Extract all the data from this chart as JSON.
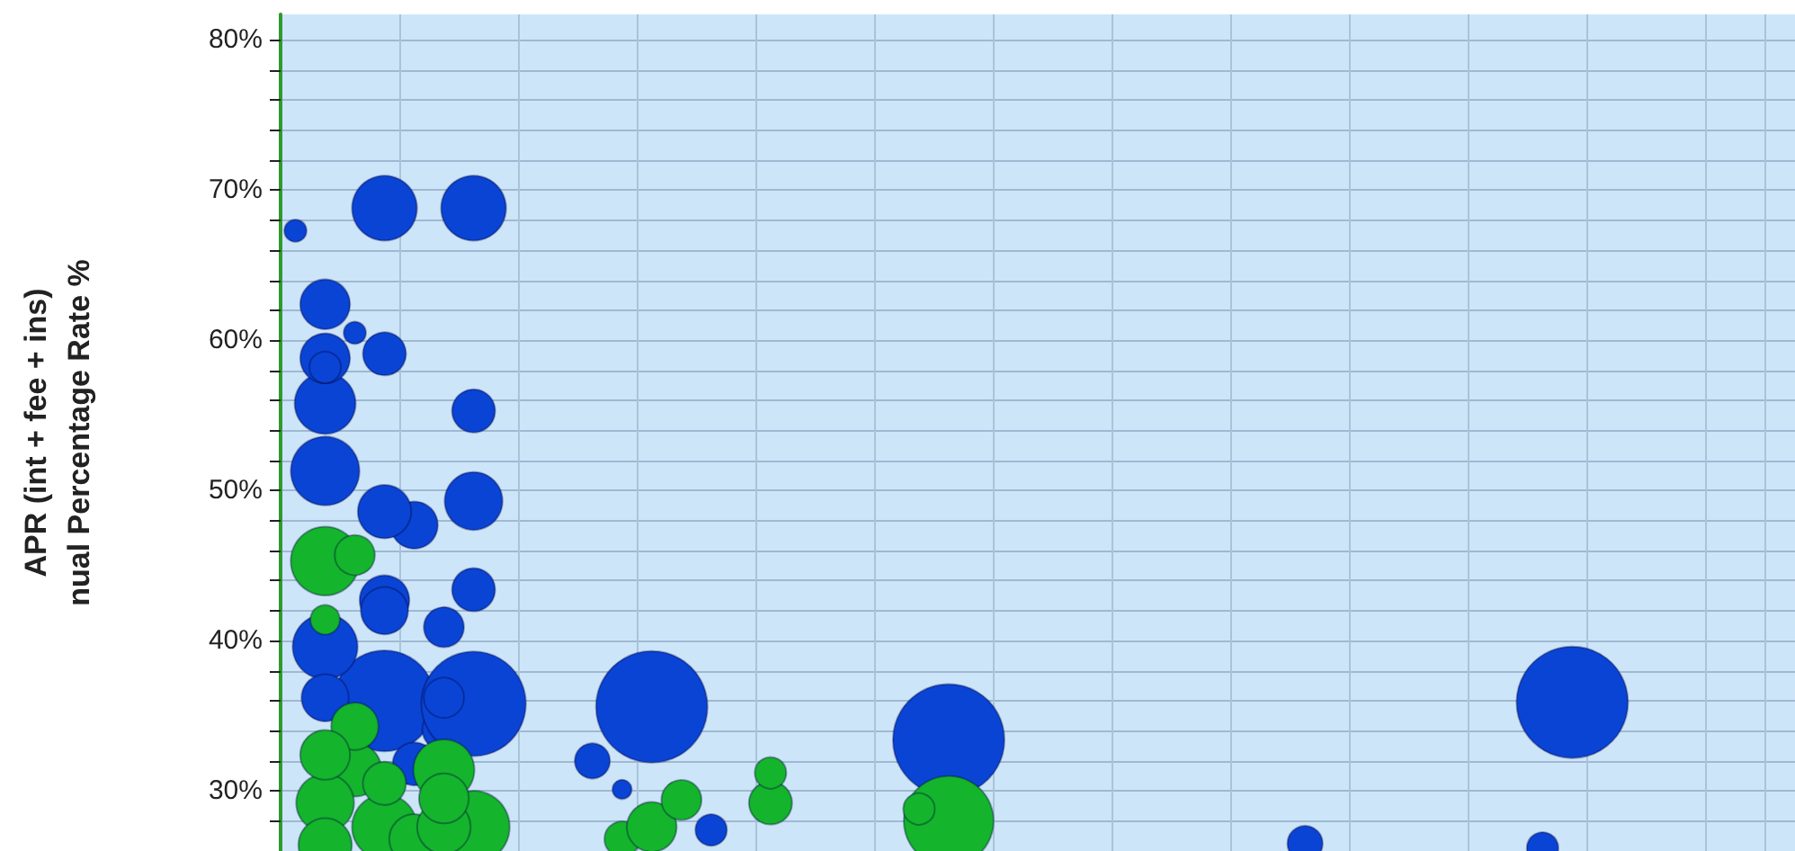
{
  "chart_data": {
    "type": "bubble",
    "ylabel": "APR (int + fee + ins)\nnual Percentage Rate %",
    "categories": [
      null,
      null,
      null,
      null,
      null,
      null,
      null,
      null,
      null,
      null,
      null,
      null,
      null,
      null,
      null,
      null,
      null,
      null,
      null,
      null,
      null,
      null,
      null,
      null,
      null,
      null,
      null,
      null,
      null,
      null,
      null,
      null,
      null,
      null,
      null,
      null,
      null,
      null,
      null,
      null,
      null,
      null,
      null,
      null,
      null,
      null,
      null,
      null,
      null,
      null,
      null
    ],
    "ylim": [
      26,
      81.7
    ],
    "yticks": [
      {
        "value": 28,
        "label": null
      },
      {
        "value": 30,
        "label": "30%"
      },
      {
        "value": 32,
        "label": null
      },
      {
        "value": 34,
        "label": null
      },
      {
        "value": 36,
        "label": null
      },
      {
        "value": 38,
        "label": null
      },
      {
        "value": 40,
        "label": "40%"
      },
      {
        "value": 42,
        "label": null
      },
      {
        "value": 44,
        "label": null
      },
      {
        "value": 46,
        "label": null
      },
      {
        "value": 48,
        "label": null
      },
      {
        "value": 50,
        "label": "50%"
      },
      {
        "value": 52,
        "label": null
      },
      {
        "value": 54,
        "label": null
      },
      {
        "value": 56,
        "label": null
      },
      {
        "value": 58,
        "label": null
      },
      {
        "value": 60,
        "label": "60%"
      },
      {
        "value": 62,
        "label": null
      },
      {
        "value": 64,
        "label": null
      },
      {
        "value": 66,
        "label": null
      },
      {
        "value": 68,
        "label": null
      },
      {
        "value": 70,
        "label": "70%"
      },
      {
        "value": 72,
        "label": null
      },
      {
        "value": 74,
        "label": null
      },
      {
        "value": 76,
        "label": null
      },
      {
        "value": 78,
        "label": null
      },
      {
        "value": 80,
        "label": "80%"
      }
    ],
    "tick_labels": "y",
    "grid": true,
    "series": [
      {
        "color": "#0a44d4",
        "values": [
          67.3,
          51.3,
          60.5,
          36.0,
          47.7,
          34.1,
          35.8,
          null,
          null,
          null,
          32.0,
          30.1,
          35.6,
          null,
          27.4,
          null,
          null,
          null,
          null,
          null,
          null,
          null,
          33.4,
          null,
          null,
          null,
          null,
          null,
          null,
          null,
          null,
          null,
          null,
          null,
          26.5,
          null,
          null,
          null,
          null,
          null,
          null,
          null,
          26.2,
          35.9,
          null,
          null,
          null,
          null,
          null,
          null,
          null
        ],
        "sizes": [
          0.04,
          0.38,
          0.04,
          0.82,
          0.18,
          0.15,
          0.88,
          null,
          null,
          null,
          0.1,
          0.03,
          1,
          null,
          0.08,
          null,
          null,
          null,
          null,
          null,
          null,
          null,
          1,
          null,
          null,
          null,
          null,
          null,
          null,
          null,
          null,
          null,
          null,
          null,
          0.1,
          null,
          null,
          null,
          null,
          null,
          null,
          null,
          0.08,
          1,
          null,
          null,
          null,
          null,
          null,
          null,
          null
        ]
      },
      {
        "color": "#0a44d4",
        "values": [
          null,
          39.6,
          null,
          68.8,
          31.8,
          40.9,
          68.8,
          null,
          null,
          null,
          null,
          null,
          null,
          null,
          null,
          null,
          null,
          null,
          null,
          null,
          null,
          null,
          null,
          null,
          null,
          null,
          null,
          null,
          null,
          null,
          null,
          null,
          null,
          null,
          null,
          null,
          null,
          null,
          null,
          null,
          null,
          null,
          null,
          null,
          null,
          null,
          null,
          null,
          null,
          null,
          null
        ],
        "sizes": [
          null,
          0.34,
          null,
          0.34,
          0.15,
          0.13,
          0.34,
          null,
          null,
          null,
          null,
          null,
          null,
          null,
          null,
          null,
          null,
          null,
          null,
          null,
          null,
          null,
          null,
          null,
          null,
          null,
          null,
          null,
          null,
          null,
          null,
          null,
          null,
          null,
          null,
          null,
          null,
          null,
          null,
          null,
          null,
          null,
          null,
          null,
          null,
          null,
          null,
          null,
          null,
          null,
          null
        ]
      },
      {
        "color": "#0a44d4",
        "values": [
          null,
          55.8,
          null,
          48.6,
          null,
          36.2,
          49.3,
          null,
          null,
          null,
          null,
          null,
          null,
          null,
          null,
          null,
          null,
          null,
          null,
          null,
          null,
          null,
          null,
          null,
          null,
          null,
          null,
          null,
          null,
          null,
          null,
          null,
          null,
          null,
          null,
          null,
          null,
          null,
          null,
          null,
          null,
          null,
          null,
          null,
          null,
          null,
          null,
          null,
          null,
          null,
          null
        ],
        "sizes": [
          null,
          0.3,
          null,
          0.23,
          null,
          0.13,
          0.27,
          null,
          null,
          null,
          null,
          null,
          null,
          null,
          null,
          null,
          null,
          null,
          null,
          null,
          null,
          null,
          null,
          null,
          null,
          null,
          null,
          null,
          null,
          null,
          null,
          null,
          null,
          null,
          null,
          null,
          null,
          null,
          null,
          null,
          null,
          null,
          null,
          null,
          null,
          null,
          null,
          null,
          null,
          null,
          null
        ]
      },
      {
        "color": "#0a44d4",
        "values": [
          null,
          null,
          null,
          42.7,
          null,
          null,
          55.3,
          null,
          null,
          null,
          null,
          null,
          null,
          null,
          null,
          null,
          null,
          null,
          null,
          null,
          null,
          null,
          null,
          null,
          null,
          null,
          null,
          null,
          null,
          null,
          null,
          null,
          null,
          null,
          null,
          null,
          null,
          null,
          null,
          null,
          null,
          null,
          null,
          null,
          null,
          null,
          null,
          null,
          null,
          null,
          null
        ],
        "sizes": [
          null,
          null,
          null,
          0.2,
          null,
          null,
          0.15,
          null,
          null,
          null,
          null,
          null,
          null,
          null,
          null,
          null,
          null,
          null,
          null,
          null,
          null,
          null,
          null,
          null,
          null,
          null,
          null,
          null,
          null,
          null,
          null,
          null,
          null,
          null,
          null,
          null,
          null,
          null,
          null,
          null,
          null,
          null,
          null,
          null,
          null,
          null,
          null,
          null,
          null,
          null,
          null
        ]
      },
      {
        "color": "#0a44d4",
        "values": [
          null,
          62.4,
          null,
          42.0,
          null,
          null,
          43.4,
          null,
          null,
          null,
          null,
          null,
          null,
          null,
          null,
          null,
          null,
          null,
          null,
          null,
          null,
          null,
          null,
          null,
          null,
          null,
          null,
          null,
          null,
          null,
          null,
          null,
          null,
          null,
          null,
          null,
          null,
          null,
          null,
          null,
          null,
          null,
          null,
          null,
          null,
          null,
          null,
          null,
          null,
          null,
          null
        ],
        "sizes": [
          null,
          0.2,
          null,
          0.18,
          null,
          null,
          0.15,
          null,
          null,
          null,
          null,
          null,
          null,
          null,
          null,
          null,
          null,
          null,
          null,
          null,
          null,
          null,
          null,
          null,
          null,
          null,
          null,
          null,
          null,
          null,
          null,
          null,
          null,
          null,
          null,
          null,
          null,
          null,
          null,
          null,
          null,
          null,
          null,
          null,
          null,
          null,
          null,
          null,
          null,
          null,
          null
        ]
      },
      {
        "color": "#0a44d4",
        "values": [
          null,
          58.8,
          null,
          59.1,
          null,
          null,
          null,
          null,
          null,
          null,
          null,
          null,
          null,
          null,
          null,
          null,
          null,
          null,
          null,
          null,
          null,
          null,
          null,
          null,
          null,
          null,
          null,
          null,
          null,
          null,
          null,
          null,
          null,
          null,
          null,
          null,
          null,
          null,
          null,
          null,
          null,
          null,
          null,
          null,
          null,
          null,
          null,
          null,
          null,
          null,
          null
        ],
        "sizes": [
          null,
          0.2,
          null,
          0.15,
          null,
          null,
          null,
          null,
          null,
          null,
          null,
          null,
          null,
          null,
          null,
          null,
          null,
          null,
          null,
          null,
          null,
          null,
          null,
          null,
          null,
          null,
          null,
          null,
          null,
          null,
          null,
          null,
          null,
          null,
          null,
          null,
          null,
          null,
          null,
          null,
          null,
          null,
          null,
          null,
          null,
          null,
          null,
          null,
          null,
          null,
          null
        ]
      },
      {
        "color": "#0a44d4",
        "values": [
          null,
          36.2,
          null,
          null,
          null,
          null,
          null,
          null,
          null,
          null,
          null,
          null,
          null,
          null,
          null,
          null,
          null,
          null,
          null,
          null,
          null,
          null,
          null,
          null,
          null,
          null,
          null,
          null,
          null,
          null,
          null,
          null,
          null,
          null,
          null,
          null,
          null,
          null,
          null,
          null,
          null,
          null,
          null,
          null,
          null,
          null,
          null,
          null,
          null,
          null,
          null
        ],
        "sizes": [
          null,
          0.18,
          null,
          null,
          null,
          null,
          null,
          null,
          null,
          null,
          null,
          null,
          null,
          null,
          null,
          null,
          null,
          null,
          null,
          null,
          null,
          null,
          null,
          null,
          null,
          null,
          null,
          null,
          null,
          null,
          null,
          null,
          null,
          null,
          null,
          null,
          null,
          null,
          null,
          null,
          null,
          null,
          null,
          null,
          null,
          null,
          null,
          null,
          null,
          null,
          null
        ]
      },
      {
        "color": "#0a44d4",
        "values": [
          null,
          58.2,
          null,
          null,
          null,
          null,
          null,
          null,
          null,
          null,
          null,
          null,
          null,
          null,
          null,
          null,
          null,
          null,
          null,
          null,
          null,
          null,
          null,
          null,
          null,
          null,
          null,
          null,
          null,
          null,
          null,
          null,
          null,
          null,
          null,
          null,
          null,
          null,
          null,
          null,
          null,
          null,
          null,
          null,
          null,
          null,
          null,
          null,
          null,
          null,
          null
        ],
        "sizes": [
          null,
          0.08,
          null,
          null,
          null,
          null,
          null,
          null,
          null,
          null,
          null,
          null,
          null,
          null,
          null,
          null,
          null,
          null,
          null,
          null,
          null,
          null,
          null,
          null,
          null,
          null,
          null,
          null,
          null,
          null,
          null,
          null,
          null,
          null,
          null,
          null,
          null,
          null,
          null,
          null,
          null,
          null,
          null,
          null,
          null,
          null,
          null,
          null,
          null,
          null,
          null
        ]
      },
      {
        "color": "#14b42c",
        "values": [
          null,
          45.3,
          31.4,
          27.6,
          26.8,
          31.4,
          27.6,
          null,
          null,
          null,
          null,
          26.8,
          27.6,
          29.4,
          null,
          null,
          29.2,
          null,
          null,
          null,
          null,
          null,
          28.0,
          null,
          null,
          null,
          null,
          null,
          null,
          null,
          null,
          null,
          null,
          null,
          null,
          null,
          null,
          null,
          null,
          null,
          null,
          null,
          null,
          null,
          null,
          null,
          null,
          null,
          null,
          null,
          null
        ],
        "sizes": [
          null,
          0.38,
          0.23,
          0.34,
          0.2,
          0.3,
          0.42,
          null,
          null,
          null,
          null,
          0.1,
          0.2,
          0.13,
          null,
          null,
          0.15,
          null,
          null,
          null,
          null,
          null,
          0.65,
          null,
          null,
          null,
          null,
          null,
          null,
          null,
          null,
          null,
          null,
          null,
          null,
          null,
          null,
          null,
          null,
          null,
          null,
          null,
          null,
          null,
          null,
          null,
          null,
          null,
          null,
          null,
          null
        ]
      },
      {
        "color": "#14b42c",
        "values": [
          null,
          29.2,
          34.3,
          30.5,
          null,
          27.6,
          null,
          null,
          null,
          null,
          null,
          null,
          null,
          null,
          null,
          null,
          31.2,
          null,
          null,
          null,
          null,
          28.8,
          null,
          null,
          null,
          null,
          null,
          null,
          null,
          null,
          null,
          null,
          null,
          null,
          null,
          null,
          null,
          null,
          null,
          null,
          null,
          null,
          null,
          null,
          null,
          null,
          null,
          null,
          null,
          null,
          null
        ],
        "sizes": [
          null,
          0.27,
          0.18,
          0.15,
          null,
          0.23,
          null,
          null,
          null,
          null,
          null,
          null,
          null,
          null,
          null,
          null,
          0.08,
          null,
          null,
          null,
          null,
          0.08,
          null,
          null,
          null,
          null,
          null,
          null,
          null,
          null,
          null,
          null,
          null,
          null,
          null,
          null,
          null,
          null,
          null,
          null,
          null,
          null,
          null,
          null,
          null,
          null,
          null,
          null,
          null,
          null,
          null
        ]
      },
      {
        "color": "#14b42c",
        "values": [
          null,
          26.4,
          45.7,
          null,
          null,
          29.5,
          null,
          null,
          null,
          null,
          null,
          null,
          null,
          null,
          null,
          null,
          null,
          null,
          null,
          null,
          null,
          null,
          null,
          null,
          null,
          null,
          null,
          null,
          null,
          null,
          null,
          null,
          null,
          null,
          null,
          null,
          null,
          null,
          null,
          null,
          null,
          null,
          null,
          null,
          null,
          null,
          null,
          null,
          null,
          null,
          null
        ],
        "sizes": [
          null,
          0.23,
          0.13,
          null,
          null,
          0.2,
          null,
          null,
          null,
          null,
          null,
          null,
          null,
          null,
          null,
          null,
          null,
          null,
          null,
          null,
          null,
          null,
          null,
          null,
          null,
          null,
          null,
          null,
          null,
          null,
          null,
          null,
          null,
          null,
          null,
          null,
          null,
          null,
          null,
          null,
          null,
          null,
          null,
          null,
          null,
          null,
          null,
          null,
          null,
          null,
          null
        ]
      },
      {
        "color": "#14b42c",
        "values": [
          null,
          32.4,
          null,
          null,
          null,
          null,
          null,
          null,
          null,
          null,
          null,
          null,
          null,
          null,
          null,
          null,
          null,
          null,
          null,
          null,
          null,
          null,
          null,
          null,
          null,
          null,
          null,
          null,
          null,
          null,
          null,
          null,
          null,
          null,
          null,
          null,
          null,
          null,
          null,
          null,
          null,
          null,
          null,
          null,
          null,
          null,
          null,
          null,
          null,
          null,
          null
        ],
        "sizes": [
          null,
          0.2,
          null,
          null,
          null,
          null,
          null,
          null,
          null,
          null,
          null,
          null,
          null,
          null,
          null,
          null,
          null,
          null,
          null,
          null,
          null,
          null,
          null,
          null,
          null,
          null,
          null,
          null,
          null,
          null,
          null,
          null,
          null,
          null,
          null,
          null,
          null,
          null,
          null,
          null,
          null,
          null,
          null,
          null,
          null,
          null,
          null,
          null,
          null,
          null,
          null
        ]
      },
      {
        "color": "#14b42c",
        "values": [
          null,
          41.4,
          null,
          null,
          null,
          null,
          null,
          null,
          null,
          null,
          null,
          null,
          null,
          null,
          null,
          null,
          null,
          null,
          null,
          null,
          null,
          null,
          null,
          null,
          null,
          null,
          null,
          null,
          null,
          null,
          null,
          null,
          null,
          null,
          null,
          null,
          null,
          null,
          null,
          null,
          null,
          null,
          null,
          null,
          null,
          null,
          null,
          null,
          null,
          null,
          null
        ],
        "sizes": [
          null,
          0.07,
          null,
          null,
          null,
          null,
          null,
          null,
          null,
          null,
          null,
          null,
          null,
          null,
          null,
          null,
          null,
          null,
          null,
          null,
          null,
          null,
          null,
          null,
          null,
          null,
          null,
          null,
          null,
          null,
          null,
          null,
          null,
          null,
          null,
          null,
          null,
          null,
          null,
          null,
          null,
          null,
          null,
          null,
          null,
          null,
          null,
          null,
          null,
          null,
          null
        ]
      }
    ]
  }
}
